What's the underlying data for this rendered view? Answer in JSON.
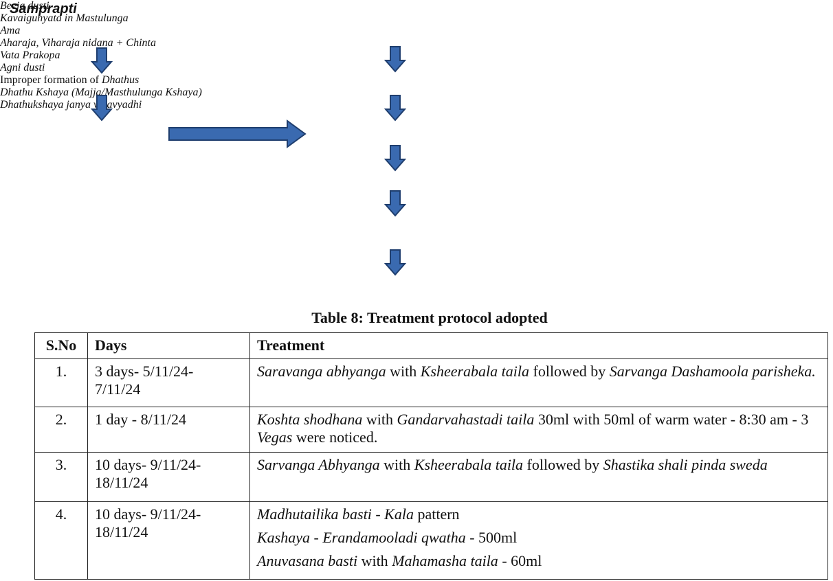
{
  "title": "Samprapti",
  "flow": {
    "left": [
      [
        {
          "text": "Beeja dusti",
          "italic": true
        }
      ],
      [
        {
          "text": "Kavaigunyata in Mastulunga",
          "italic": true
        }
      ],
      [
        {
          "text": "Ama",
          "italic": true
        }
      ]
    ],
    "right": [
      [
        {
          "text": "Aharaja, Viharaja nidana + Chinta",
          "italic": true
        }
      ],
      [
        {
          "text": "Vata Prakopa",
          "italic": true
        }
      ],
      [
        {
          "text": "Agni dusti",
          "italic": true
        }
      ],
      [
        {
          "text": "Improper formation of ",
          "italic": false
        },
        {
          "text": "Dhathus",
          "italic": true
        }
      ],
      [
        {
          "text": "Dhathu Kshaya (Majja/Masthulunga Kshaya)",
          "italic": true
        }
      ],
      [
        {
          "text": "Dhathukshaya janya vatavyadhi",
          "italic": true
        }
      ]
    ]
  },
  "table": {
    "title": "Table 8: Treatment protocol adopted",
    "headers": [
      "S.No",
      "Days",
      "Treatment"
    ],
    "rows": [
      {
        "sno": "1.",
        "days": "3 days- 5/11/24- 7/11/24",
        "treatment": [
          [
            {
              "text": "Saravanga abhyanga",
              "italic": true
            },
            {
              "text": " with ",
              "italic": false
            },
            {
              "text": "Ksheerabala taila",
              "italic": true
            },
            {
              "text": " followed by ",
              "italic": false
            },
            {
              "text": "Sarvanga Dashamoola parisheka.",
              "italic": true
            }
          ]
        ]
      },
      {
        "sno": "2.",
        "days": "1 day - 8/11/24",
        "treatment": [
          [
            {
              "text": "Koshta shodhana",
              "italic": true
            },
            {
              "text": " with ",
              "italic": false
            },
            {
              "text": "Gandarvahastadi taila",
              "italic": true
            },
            {
              "text": " 30ml with 50ml of warm water - 8:30 am - 3 ",
              "italic": false
            },
            {
              "text": "Vegas",
              "italic": true
            },
            {
              "text": " were noticed.",
              "italic": false
            }
          ]
        ]
      },
      {
        "sno": "3.",
        "days": "10 days- 9/11/24- 18/11/24",
        "treatment": [
          [
            {
              "text": "Sarvanga Abhyanga",
              "italic": true
            },
            {
              "text": " with ",
              "italic": false
            },
            {
              "text": "Ksheerabala taila",
              "italic": true
            },
            {
              "text": " followed by ",
              "italic": false
            },
            {
              "text": "Shastika shali pinda sweda",
              "italic": true
            }
          ]
        ]
      },
      {
        "sno": "4.",
        "days": "10 days- 9/11/24- 18/11/24",
        "treatment": [
          [
            {
              "text": "Madhutailika basti",
              "italic": true
            },
            {
              "text": " - ",
              "italic": false
            },
            {
              "text": "Kala",
              "italic": true
            },
            {
              "text": " pattern",
              "italic": false
            }
          ],
          [
            {
              "text": "Kashaya",
              "italic": true
            },
            {
              "text": " - ",
              "italic": false
            },
            {
              "text": "Erandamooladi qwatha",
              "italic": true
            },
            {
              "text": " - 500ml",
              "italic": false
            }
          ],
          [
            {
              "text": "Anuvasana basti",
              "italic": true
            },
            {
              "text": " with ",
              "italic": false
            },
            {
              "text": "Mahamasha taila",
              "italic": true
            },
            {
              "text": " - 60ml",
              "italic": false
            }
          ]
        ]
      }
    ]
  }
}
